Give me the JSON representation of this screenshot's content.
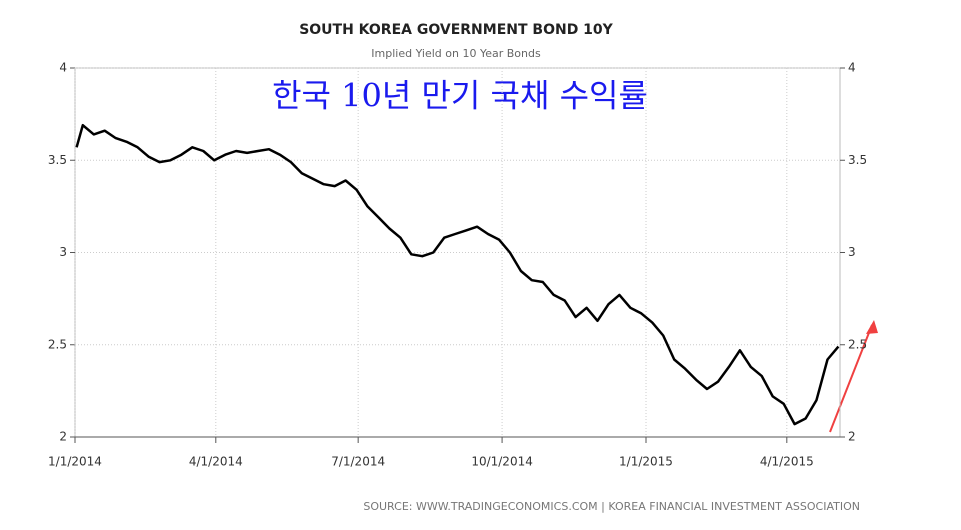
{
  "chart_data": {
    "type": "line",
    "title": "SOUTH KOREA GOVERNMENT BOND 10Y",
    "subtitle": "Implied Yield on 10 Year Bonds",
    "annotation": "한국 10년 만기 국채 수익률",
    "source": "SOURCE:  WWW.TRADINGECONOMICS.COM  |  KOREA FINANCIAL INVESTMENT ASSOCIATION",
    "x": [
      "1/2/2014",
      "1/6/2014",
      "1/13/2014",
      "1/20/2014",
      "1/27/2014",
      "2/3/2014",
      "2/10/2014",
      "2/17/2014",
      "2/24/2014",
      "3/3/2014",
      "3/10/2014",
      "3/17/2014",
      "3/24/2014",
      "3/31/2014",
      "4/7/2014",
      "4/14/2014",
      "4/21/2014",
      "4/28/2014",
      "5/5/2014",
      "5/12/2014",
      "5/19/2014",
      "5/26/2014",
      "6/2/2014",
      "6/9/2014",
      "6/16/2014",
      "6/23/2014",
      "6/30/2014",
      "7/7/2014",
      "7/14/2014",
      "7/21/2014",
      "7/28/2014",
      "8/4/2014",
      "8/11/2014",
      "8/18/2014",
      "8/25/2014",
      "9/1/2014",
      "9/8/2014",
      "9/15/2014",
      "9/22/2014",
      "9/29/2014",
      "10/6/2014",
      "10/13/2014",
      "10/20/2014",
      "10/27/2014",
      "11/3/2014",
      "11/10/2014",
      "11/17/2014",
      "11/24/2014",
      "12/1/2014",
      "12/8/2014",
      "12/15/2014",
      "12/22/2014",
      "12/29/2014",
      "1/5/2015",
      "1/12/2015",
      "1/19/2015",
      "1/26/2015",
      "2/2/2015",
      "2/9/2015",
      "2/16/2015",
      "2/23/2015",
      "3/2/2015",
      "3/9/2015",
      "3/16/2015",
      "3/23/2015",
      "3/30/2015",
      "4/6/2015",
      "4/13/2015",
      "4/20/2015",
      "4/27/2015",
      "5/4/2015"
    ],
    "series": [
      {
        "name": "South Korea Government Bond 10Y",
        "color": "#000000",
        "values": [
          3.57,
          3.69,
          3.64,
          3.66,
          3.62,
          3.6,
          3.57,
          3.52,
          3.49,
          3.5,
          3.53,
          3.57,
          3.55,
          3.5,
          3.53,
          3.55,
          3.54,
          3.55,
          3.56,
          3.53,
          3.49,
          3.43,
          3.4,
          3.37,
          3.36,
          3.39,
          3.34,
          3.25,
          3.19,
          3.13,
          3.08,
          2.99,
          2.98,
          3.0,
          3.08,
          3.1,
          3.12,
          3.14,
          3.1,
          3.07,
          3.0,
          2.9,
          2.85,
          2.84,
          2.77,
          2.74,
          2.65,
          2.7,
          2.63,
          2.72,
          2.77,
          2.7,
          2.67,
          2.62,
          2.55,
          2.42,
          2.37,
          2.31,
          2.26,
          2.3,
          2.38,
          2.47,
          2.38,
          2.33,
          2.22,
          2.18,
          2.07,
          2.1,
          2.2,
          2.42,
          2.49
        ]
      }
    ],
    "xlim": [
      "1/1/2014",
      "5/5/2015"
    ],
    "xticks": [
      "1/1/2014",
      "4/1/2014",
      "7/1/2014",
      "10/1/2014",
      "1/1/2015",
      "4/1/2015"
    ],
    "ylim": [
      2,
      4
    ],
    "yticks": [
      2,
      2.5,
      3,
      3.5,
      4
    ],
    "grid": true
  }
}
